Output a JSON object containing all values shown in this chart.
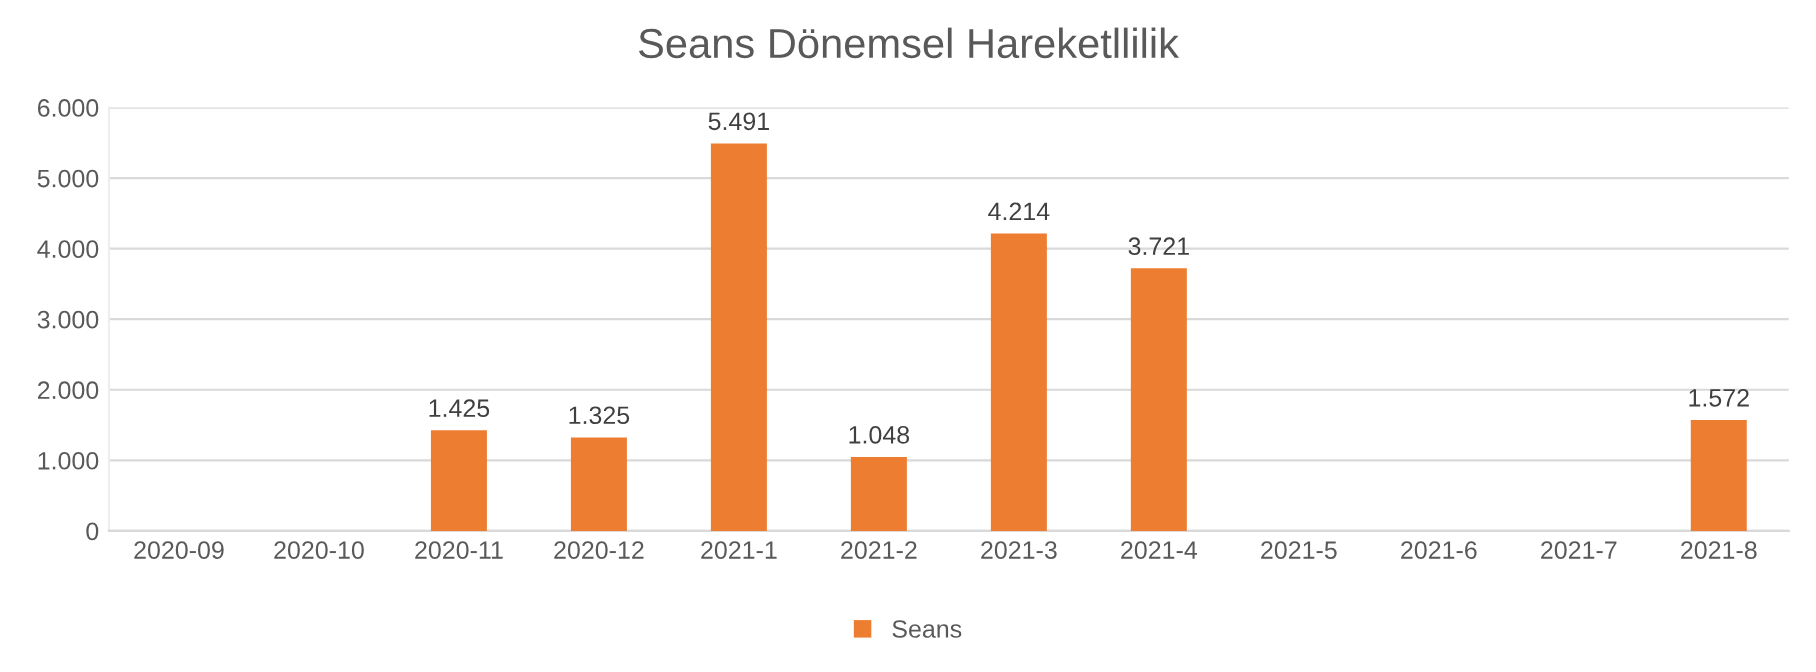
{
  "chart_data": {
    "type": "bar",
    "title": "Seans Dönemsel Hareketllilik",
    "categories": [
      "2020-09",
      "2020-10",
      "2020-11",
      "2020-12",
      "2021-1",
      "2021-2",
      "2021-3",
      "2021-4",
      "2021-5",
      "2021-6",
      "2021-7",
      "2021-8"
    ],
    "series": [
      {
        "name": "Seans",
        "color": "#ed7d31",
        "values": [
          null,
          null,
          1425,
          1325,
          5491,
          1048,
          4214,
          3721,
          null,
          null,
          null,
          1572
        ],
        "value_labels": [
          null,
          null,
          "1.425",
          "1.325",
          "5.491",
          "1.048",
          "4.214",
          "3.721",
          null,
          null,
          null,
          "1.572"
        ]
      }
    ],
    "ylim": [
      0,
      6000
    ],
    "yticks": [
      0,
      {
        "value": 1000,
        "label": "1.000"
      },
      {
        "value": 2000,
        "label": "2.000"
      },
      {
        "value": 3000,
        "label": "3.000"
      },
      {
        "value": 4000,
        "label": "4.000"
      },
      {
        "value": 5000,
        "label": "5.000"
      },
      {
        "value": 6000,
        "label": "6.000"
      }
    ],
    "grid": "y",
    "legend": "bottom"
  }
}
